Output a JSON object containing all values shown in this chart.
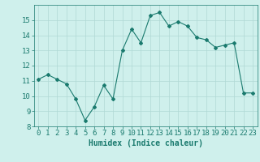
{
  "x": [
    0,
    1,
    2,
    3,
    4,
    5,
    6,
    7,
    8,
    9,
    10,
    11,
    12,
    13,
    14,
    15,
    16,
    17,
    18,
    19,
    20,
    21,
    22,
    23
  ],
  "y": [
    11.1,
    11.4,
    11.1,
    10.8,
    9.8,
    8.4,
    9.3,
    10.7,
    9.8,
    13.0,
    14.4,
    13.5,
    15.3,
    15.5,
    14.6,
    14.9,
    14.6,
    13.85,
    13.7,
    13.2,
    13.35,
    13.5,
    10.2,
    10.2
  ],
  "line_color": "#1a7a6e",
  "marker": "D",
  "marker_size": 2.0,
  "bg_color": "#cff0ec",
  "grid_color": "#b0d8d4",
  "xlabel": "Humidex (Indice chaleur)",
  "xlim": [
    -0.5,
    23.5
  ],
  "ylim": [
    8,
    16
  ],
  "yticks": [
    8,
    9,
    10,
    11,
    12,
    13,
    14,
    15
  ],
  "xticks": [
    0,
    1,
    2,
    3,
    4,
    5,
    6,
    7,
    8,
    9,
    10,
    11,
    12,
    13,
    14,
    15,
    16,
    17,
    18,
    19,
    20,
    21,
    22,
    23
  ],
  "label_color": "#1a7a6e",
  "tick_color": "#1a7a6e",
  "font_size_label": 7,
  "font_size_tick": 6.5
}
